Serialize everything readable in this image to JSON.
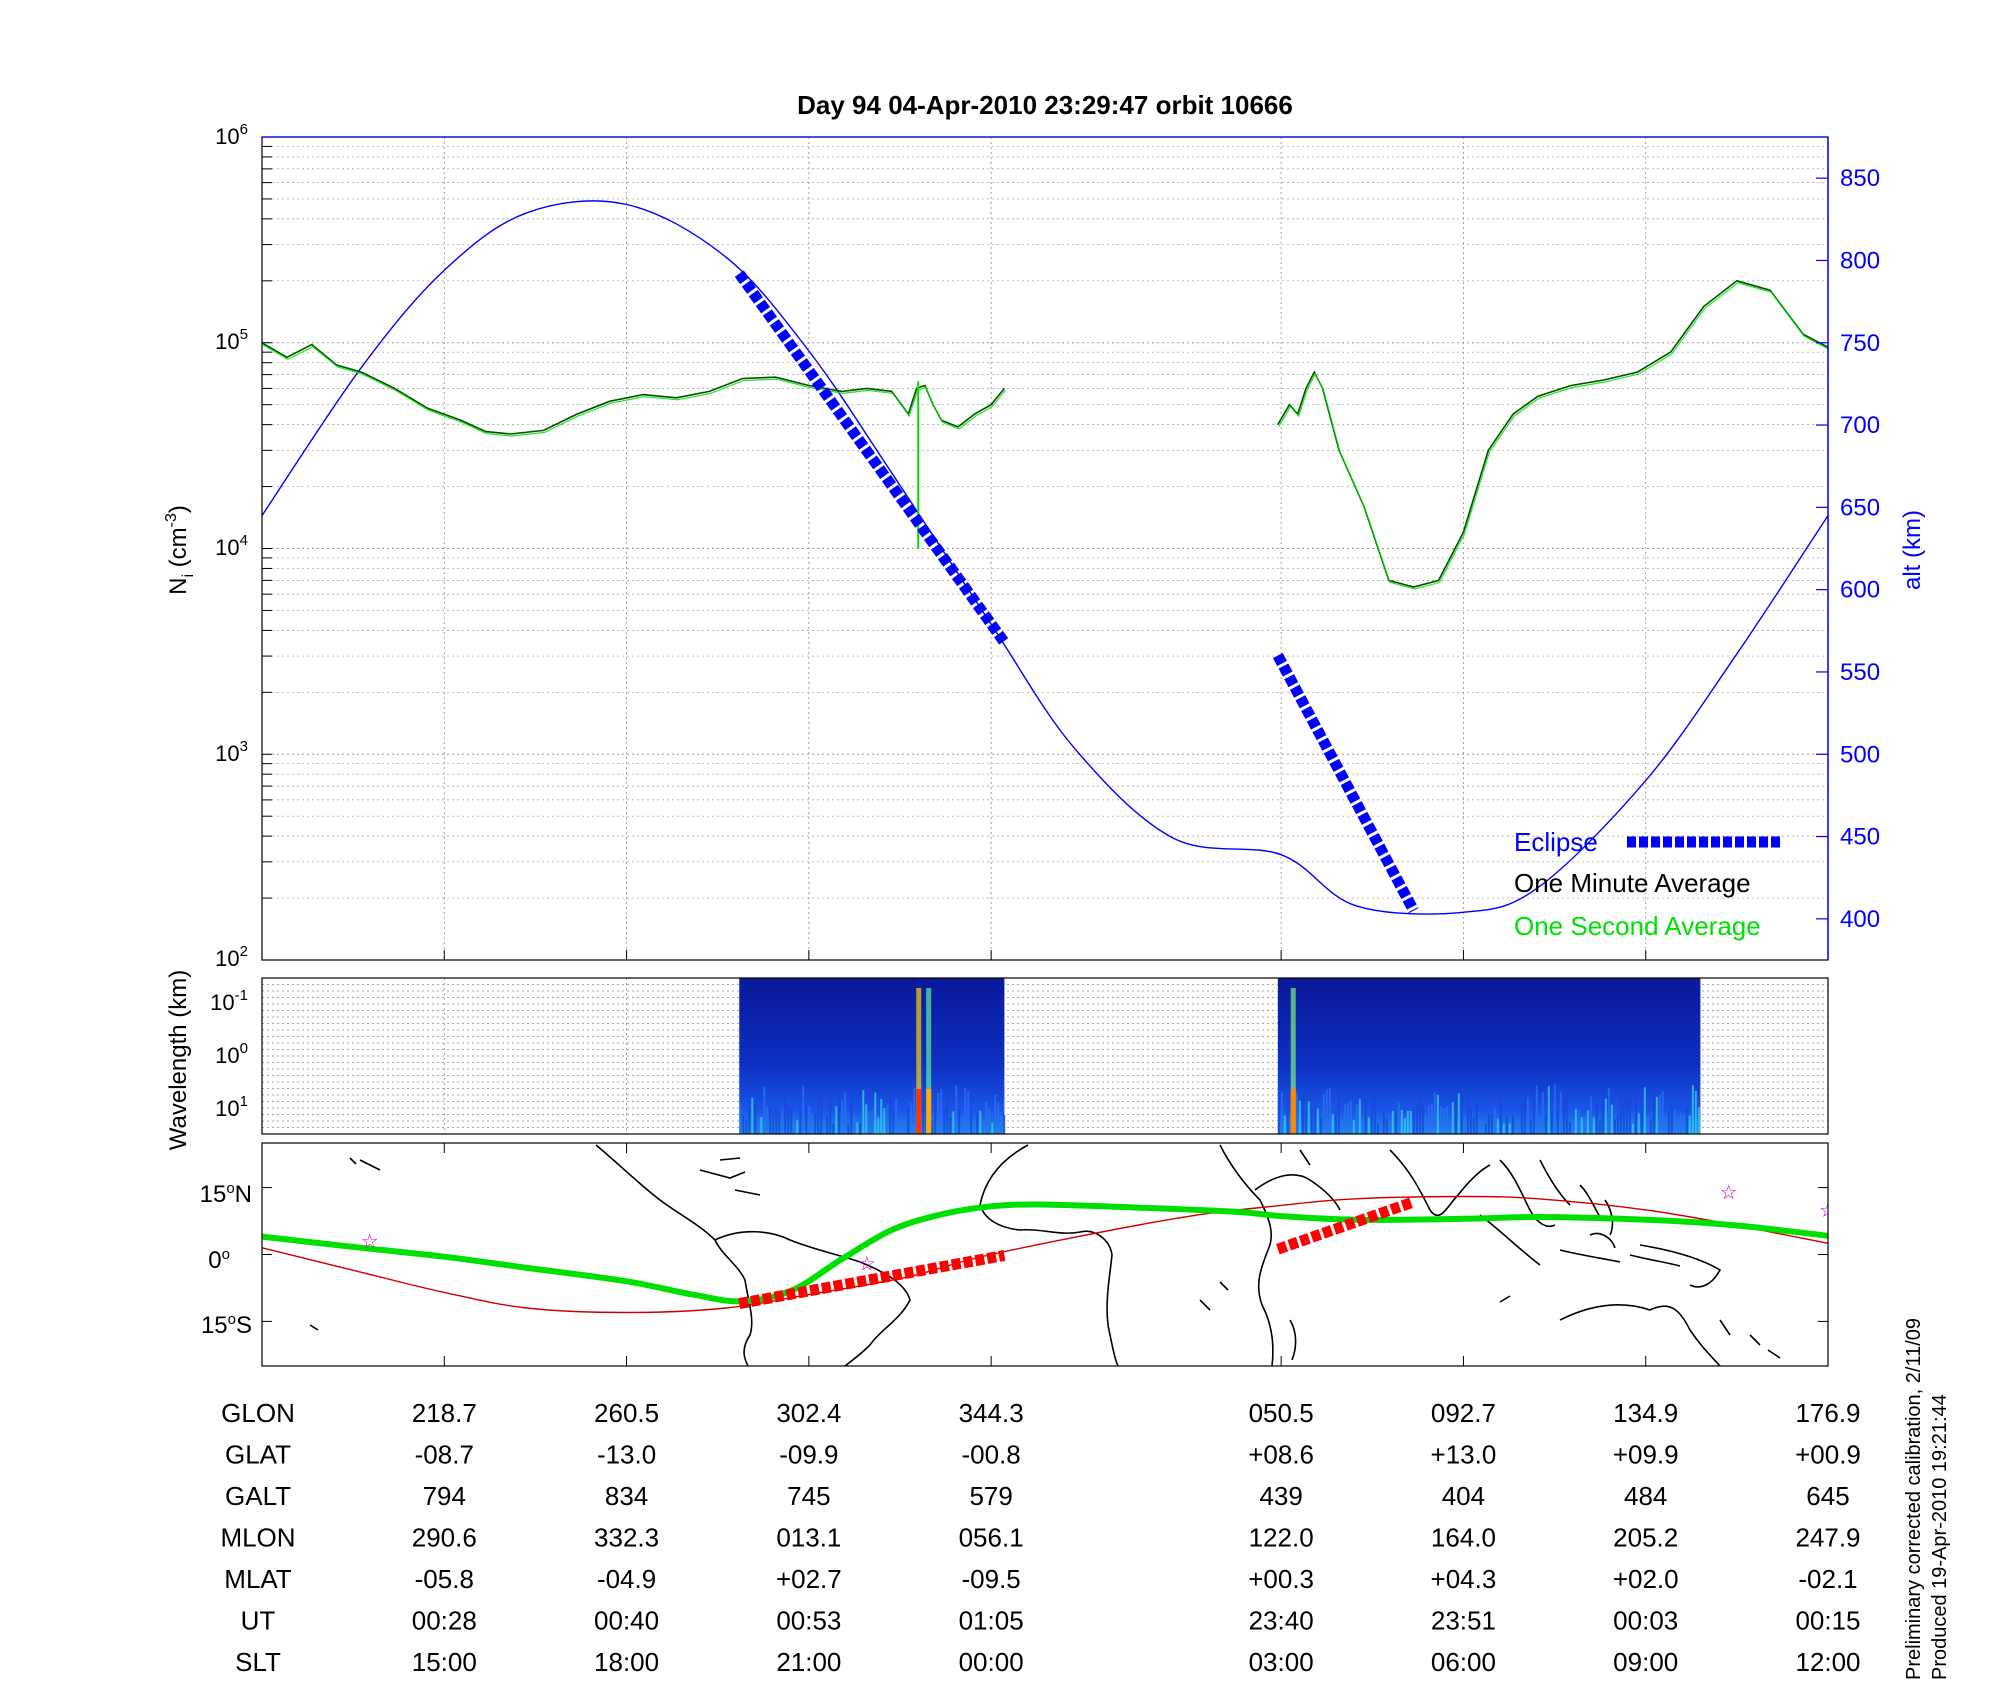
{
  "title": "Day 94  04-Apr-2010 23:29:47   orbit 10666",
  "side_note": [
    "Preliminary corrected calibration, 2/11/09",
    "Produced 19-Apr-2010 19:21:44"
  ],
  "colors": {
    "altitude": "#0000ff",
    "eclipse": "#0000ff",
    "minute_avg": "#005000",
    "second_avg": "#00e000",
    "ground_track": "#00e000",
    "magnetic_track": "#cc0000",
    "track_eclipse": "#ff0000",
    "star": "#cc00cc"
  },
  "chart_data": [
    {
      "type": "line",
      "name": "density-altitude",
      "ylabel_left": "N_i (cm^-3)",
      "ylabel_right": "alt (km)",
      "yscale_left": "log",
      "ylim_left": [
        100,
        1000000
      ],
      "ylim_right": [
        375,
        875
      ],
      "left_ticks": [
        {
          "base": "10",
          "exp": "2"
        },
        {
          "base": "10",
          "exp": "3"
        },
        {
          "base": "10",
          "exp": "4"
        },
        {
          "base": "10",
          "exp": "5"
        },
        {
          "base": "10",
          "exp": "6"
        }
      ],
      "right_ticks": [
        "400",
        "450",
        "500",
        "550",
        "600",
        "650",
        "700",
        "750",
        "800",
        "850"
      ],
      "x_ticks_min": [
        0,
        11,
        22,
        33,
        50.5,
        61.5,
        72.5,
        83.5
      ],
      "xlim": [
        -11,
        83.5
      ],
      "grid": true,
      "legend": {
        "position": "bottom-right",
        "entries": [
          {
            "label": "Eclipse",
            "key": "eclipse"
          },
          {
            "label": "One Minute Average",
            "key": "minute_avg"
          },
          {
            "label": "One Second Average",
            "key": "second_avg"
          }
        ]
      },
      "altitude_km": {
        "x": [
          -11,
          -5,
          0,
          5,
          11,
          17,
          22,
          27,
          33,
          38,
          44,
          50.5,
          55,
          61.5,
          66,
          72.5,
          78,
          83.5
        ],
        "y": [
          645,
          735,
          794,
          829,
          834,
          802,
          745,
          671,
          579,
          504,
          449,
          439,
          408,
          404,
          419,
          484,
          561,
          645
        ]
      },
      "eclipse_km": [
        {
          "x": [
            17.8,
            33.8
          ],
          "y": [
            792,
            568
          ]
        },
        {
          "x": [
            50.3,
            58.5
          ],
          "y": [
            560,
            405
          ]
        }
      ],
      "density_cm3": {
        "x": [
          -11,
          -9.5,
          -8,
          -6.5,
          -5,
          -3,
          -1,
          1,
          2.5,
          4,
          6,
          8,
          10,
          12,
          14,
          16,
          18,
          20,
          22,
          24,
          25.5,
          27,
          28,
          28.5,
          29,
          29.5,
          30,
          31,
          32,
          33,
          33.8
        ],
        "y": [
          100000,
          85000,
          98000,
          78000,
          72000,
          60000,
          48000,
          42000,
          37000,
          36000,
          37500,
          45000,
          52000,
          56000,
          54000,
          58000,
          67000,
          68000,
          62000,
          58000,
          60000,
          58000,
          45000,
          60000,
          62000,
          50000,
          42000,
          39000,
          45000,
          50000,
          60000
        ]
      },
      "density2_cm3": {
        "x": [
          50.3,
          51,
          51.5,
          52,
          52.5,
          53,
          54,
          55.5,
          57,
          58.5,
          60,
          61.5,
          63,
          64.5,
          66,
          68,
          70,
          72,
          74,
          76,
          78,
          80,
          82,
          83.5
        ],
        "y": [
          40000,
          50000,
          45000,
          60000,
          72000,
          60000,
          30000,
          16000,
          7000,
          6500,
          7000,
          12000,
          30000,
          45000,
          55000,
          62000,
          66000,
          72000,
          90000,
          150000,
          200000,
          180000,
          110000,
          95000
        ]
      },
      "spikes": [
        {
          "x": 28.6,
          "y_min": 10000,
          "y_max": 65000
        }
      ]
    },
    {
      "type": "heatmap",
      "name": "wavelength-spectrogram",
      "ylabel": "Wavelength (km)",
      "y_ticks": [
        {
          "base": "10",
          "exp": "-1"
        },
        {
          "base": "10",
          "exp": "0"
        },
        {
          "base": "10",
          "exp": "1"
        }
      ],
      "intervals_min": [
        [
          17.8,
          33.8
        ],
        [
          50.3,
          75.8
        ]
      ]
    },
    {
      "type": "scatter",
      "name": "ground-track-map",
      "y_ticks": [
        {
          "value": "15",
          "hemi": "N"
        },
        {
          "value": "0",
          "hemi": ""
        },
        {
          "value": "15",
          "hemi": "S"
        }
      ],
      "ylim_deg": [
        -25,
        25
      ],
      "ground_track": {
        "x": [
          -11,
          -5,
          0,
          5,
          11,
          15,
          18,
          21,
          24,
          27,
          30,
          33,
          36,
          42,
          48,
          50.5,
          55,
          61.5,
          66,
          72.5,
          78,
          83.5
        ],
        "y": [
          4,
          1.5,
          -0.5,
          -3,
          -6,
          -9,
          -10.5,
          -8,
          -1,
          5.5,
          9,
          10.8,
          11.2,
          10.5,
          9.5,
          8.6,
          7.8,
          8,
          8.4,
          7.8,
          6.5,
          4.2
        ]
      },
      "eclipse_track": [
        {
          "x": [
            17.8,
            33.8
          ],
          "y": [
            -11,
            -0.2
          ]
        },
        {
          "x": [
            50.3,
            58.5
          ],
          "y": [
            1.2,
            11.8
          ]
        }
      ],
      "magnetic_equator": {
        "x": [
          -11,
          -5,
          0,
          5,
          11,
          17,
          22,
          28,
          33,
          44,
          50.5,
          55,
          61.5,
          66,
          72.5,
          78,
          83.5
        ],
        "y": [
          1.5,
          -4,
          -8.5,
          -12,
          -13,
          -12,
          -9,
          -5,
          0,
          8,
          11,
          12.5,
          13,
          12.5,
          10,
          6.5,
          2.5
        ]
      },
      "stars": [
        {
          "x": -4.5,
          "y": 3
        },
        {
          "x": 25.5,
          "y": -2
        },
        {
          "x": 77.5,
          "y": 14
        },
        {
          "x": 83.5,
          "y": 10
        }
      ]
    }
  ],
  "table": {
    "row_labels": [
      "GLON",
      "GLAT",
      "GALT",
      "MLON",
      "MLAT",
      "UT",
      "SLT"
    ],
    "columns": [
      [
        "218.7",
        "-08.7",
        "794",
        "290.6",
        "-05.8",
        "00:28",
        "15:00"
      ],
      [
        "260.5",
        "-13.0",
        "834",
        "332.3",
        "-04.9",
        "00:40",
        "18:00"
      ],
      [
        "302.4",
        "-09.9",
        "745",
        "013.1",
        "+02.7",
        "00:53",
        "21:00"
      ],
      [
        "344.3",
        "-00.8",
        "579",
        "056.1",
        "-09.5",
        "01:05",
        "00:00"
      ],
      [
        "050.5",
        "+08.6",
        "439",
        "122.0",
        "+00.3",
        "23:40",
        "03:00"
      ],
      [
        "092.7",
        "+13.0",
        "404",
        "164.0",
        "+04.3",
        "23:51",
        "06:00"
      ],
      [
        "134.9",
        "+09.9",
        "484",
        "205.2",
        "+02.0",
        "00:03",
        "09:00"
      ],
      [
        "176.9",
        "+00.9",
        "645",
        "247.9",
        "-02.1",
        "00:15",
        "12:00"
      ]
    ]
  }
}
